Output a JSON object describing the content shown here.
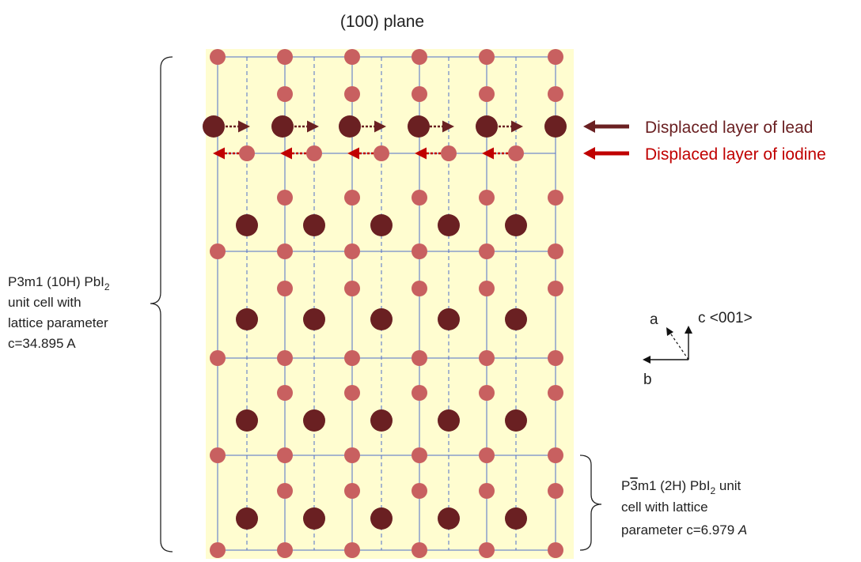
{
  "title": "(100) plane",
  "colors": {
    "background_panel": "#fffdd0",
    "grid_line": "#4f6fc9",
    "iodine_atom": "#c86060",
    "lead_atom": "#6a2022",
    "lead_arrow": "#6a2022",
    "iodine_arrow": "#c00000",
    "iodine_label": "#c00000",
    "lead_label": "#6a2022"
  },
  "legend": {
    "lead_label": "Displaced layer of lead",
    "iodine_label": "Displaced layer of iodine"
  },
  "left_annotation": {
    "line1_text": "P3m1 (10H) PbI",
    "line1_sub": "2",
    "line2": "unit cell with",
    "line3": "lattice parameter",
    "line4": "c=34.895 A"
  },
  "right_annotation": {
    "line1_pre": "P",
    "line1_over": "3",
    "line1_post": "m1 (2H) PbI",
    "line1_sub": "2",
    "line1_tail": " unit",
    "line2": "cell with lattice",
    "line3_pre": "parameter  c=6.979 ",
    "line3_italic": "A"
  },
  "axes": {
    "a_label": "a",
    "c_label": "c <001>",
    "b_label": "b"
  }
}
